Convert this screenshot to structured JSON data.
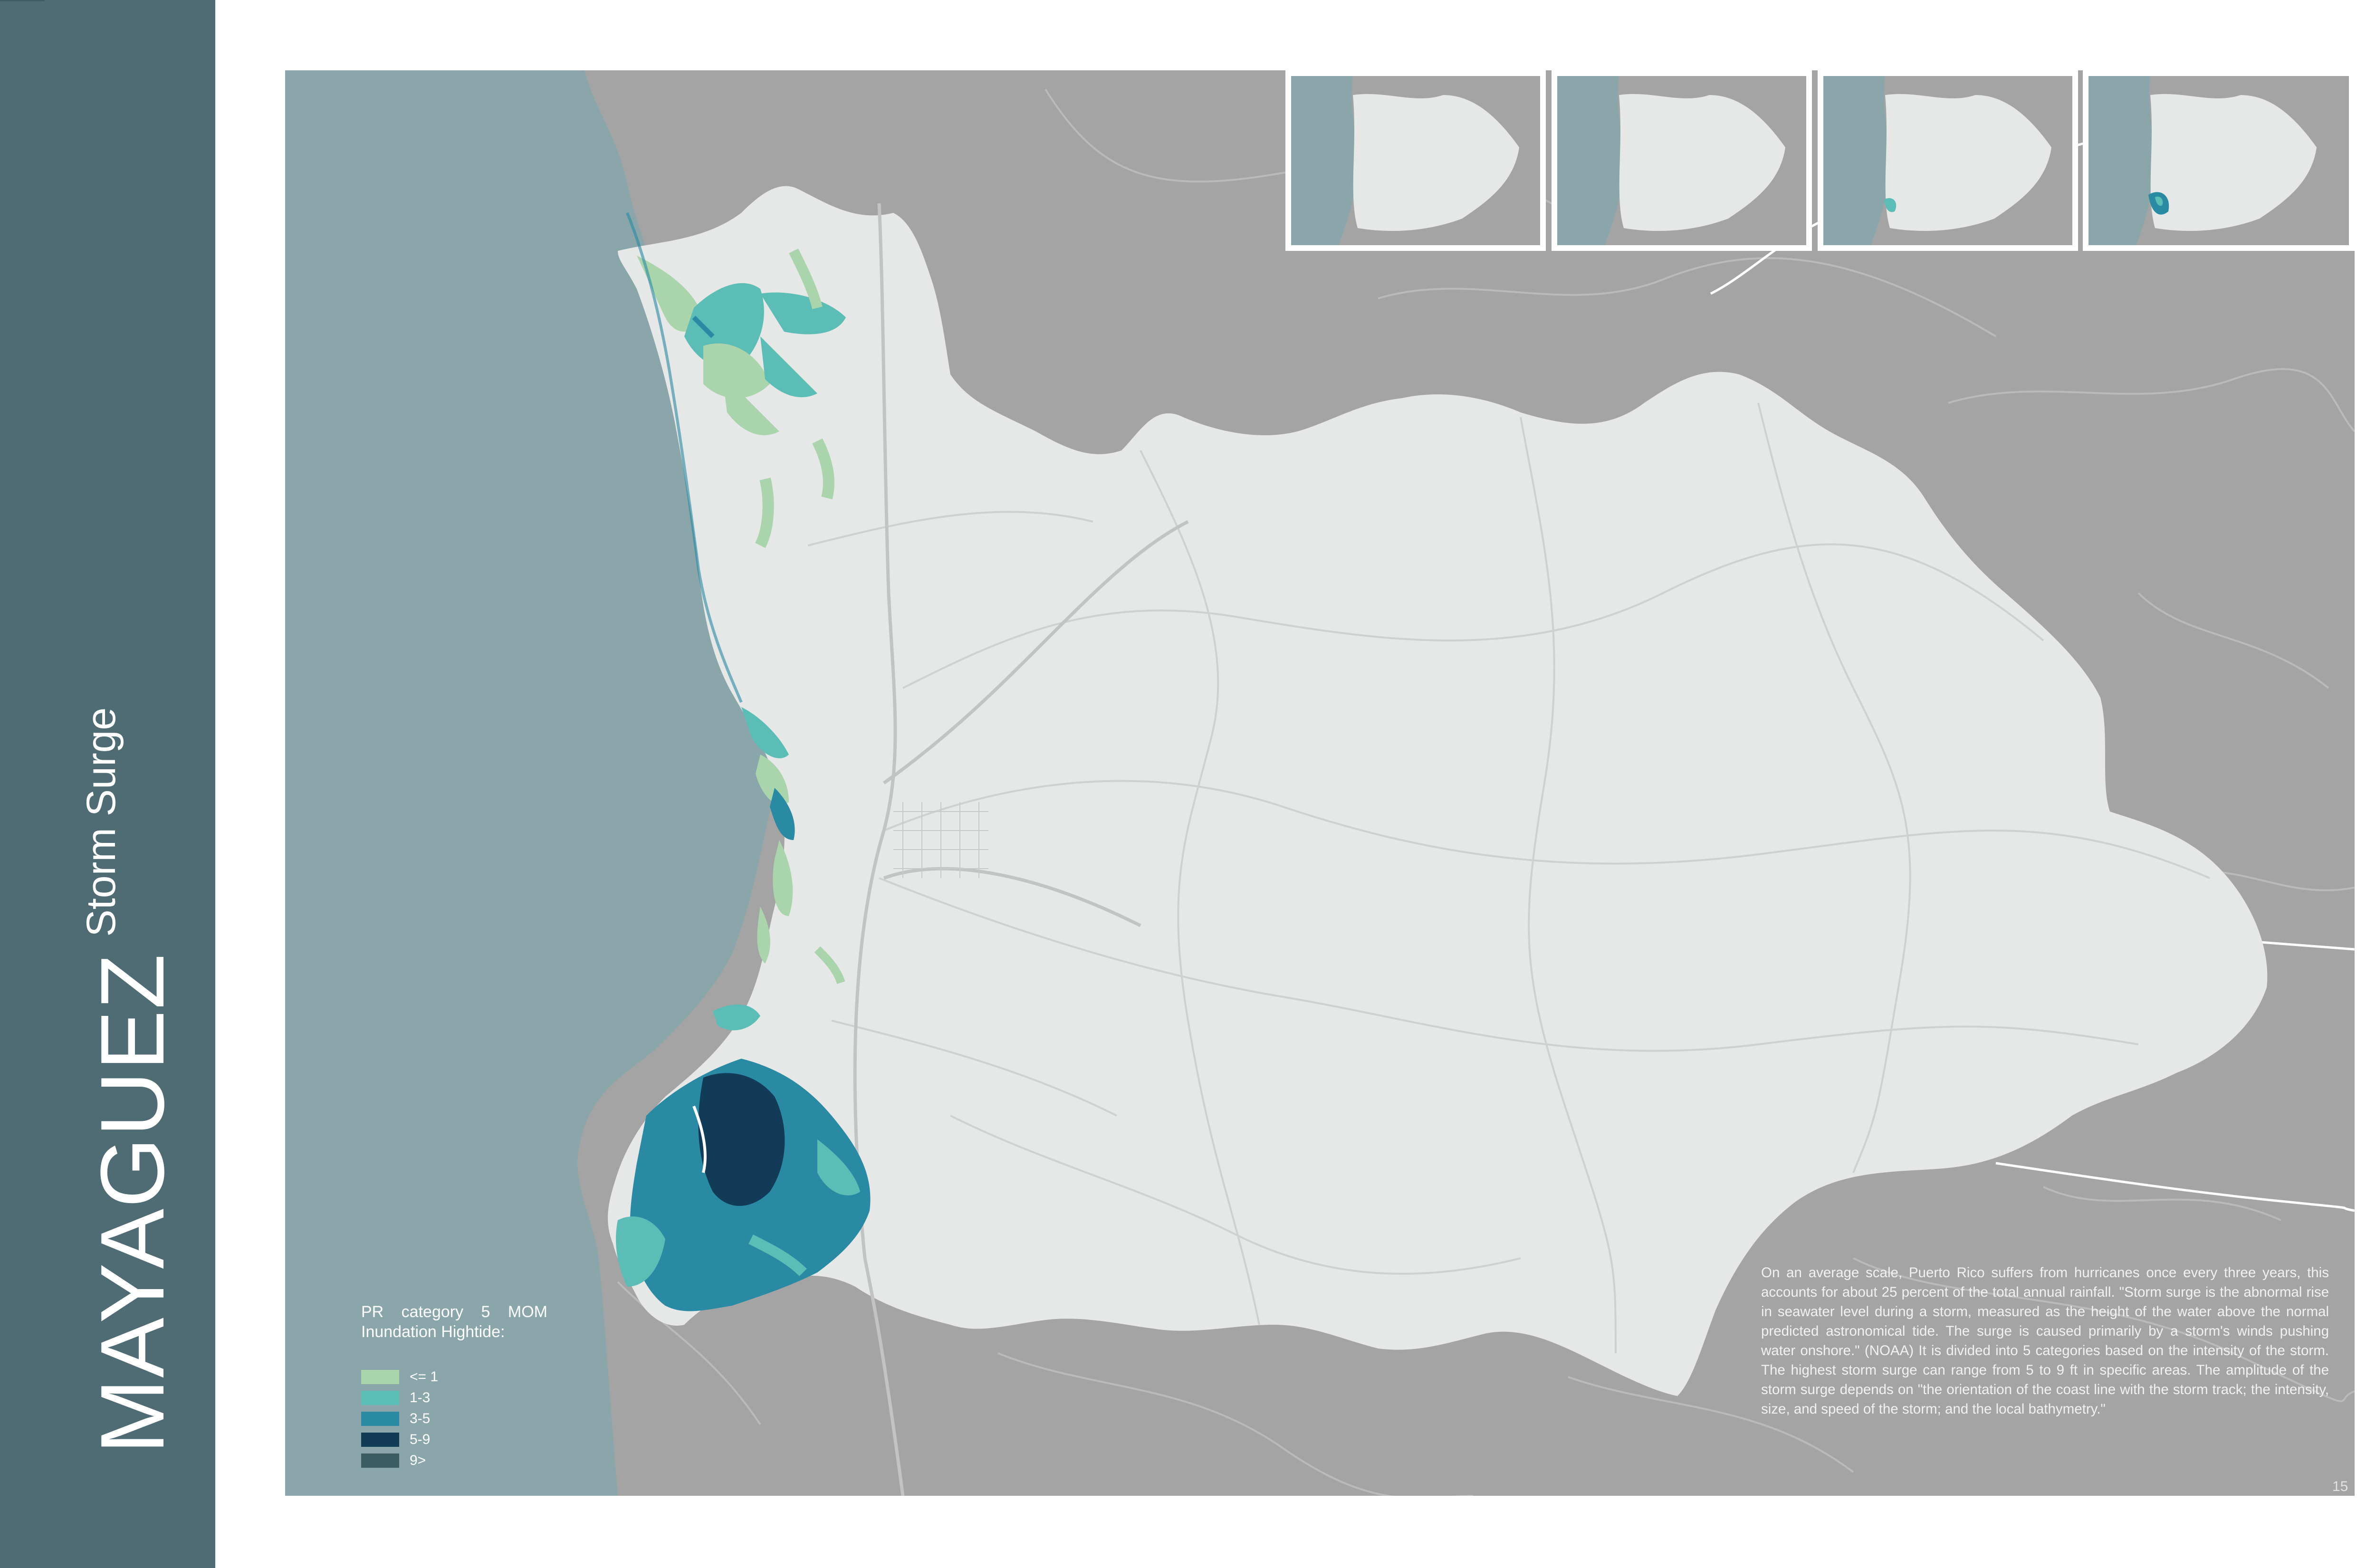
{
  "title": "MAYAGUEZ",
  "subtitle": "Storm Surge",
  "legend": {
    "title_line1": "PR category 5 MOM",
    "title_line2": "Inundation Hightide:",
    "items": [
      {
        "label": "<= 1",
        "color": "#a9d4ac"
      },
      {
        "label": "1-3",
        "color": "#5cbdb6"
      },
      {
        "label": "3-5",
        "color": "#2a8aa3"
      },
      {
        "label": "5-9",
        "color": "#113b57"
      },
      {
        "label": "9>",
        "color": "#3c5c63"
      }
    ]
  },
  "description": "On an average scale, Puerto Rico suffers from hurricanes once every three years, this accounts for about 25 percent of the total annual rainfall. \"Storm surge is the abnormal rise in seawater level during a storm, measured as the height of the water above the normal predicted astronomical tide. The surge is caused primarily by a storm's winds pushing water onshore.\" (NOAA) It is divided into 5 categories based on the intensity of the storm. The highest storm surge can range from 5 to 9 ft in specific areas. The amplitude of the storm surge depends on \"the orientation of the coast line with the storm track; the intensity, size, and speed of the storm; and the local bathymetry.\"",
  "page_number": "15",
  "colors": {
    "sidebar": "#4f6b73",
    "sea": "#8aa6ab",
    "land_outside": "#a4a4a4",
    "municipality": "#e6e7e7"
  },
  "insets": [
    {
      "surge_level": 0
    },
    {
      "surge_level": 0
    },
    {
      "surge_level": 1
    },
    {
      "surge_level": 2
    }
  ]
}
